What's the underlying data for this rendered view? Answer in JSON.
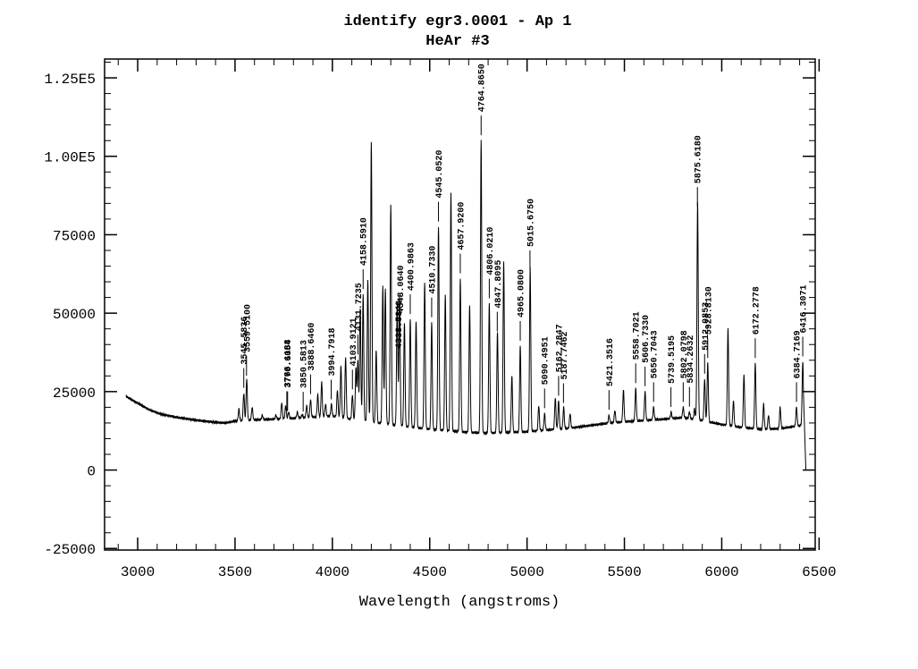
{
  "chart_data": {
    "type": "line",
    "title": "identify egr3.0001 - Ap 1",
    "subtitle": "HeAr #3",
    "xlabel": "Wavelength (angstroms)",
    "ylabel": "",
    "xlim": [
      2830,
      6480
    ],
    "ylim": [
      -25500,
      131000
    ],
    "x_ticks": [
      3000,
      3500,
      4000,
      4500,
      5000,
      5500,
      6000,
      6500
    ],
    "x_tick_labels": [
      "3000",
      "3500",
      "4000",
      "4500",
      "5000",
      "5500",
      "6000",
      "6500"
    ],
    "y_ticks": [
      -25000,
      0,
      25000,
      50000,
      75000,
      100000,
      125000
    ],
    "y_tick_labels": [
      "-25000",
      "0",
      "25000",
      "50000",
      "75000",
      "1.00E5",
      "1.25E5"
    ],
    "grid": false,
    "spectrum": {
      "baseline": [
        [
          2940,
          23500
        ],
        [
          3000,
          21300
        ],
        [
          3060,
          19200
        ],
        [
          3120,
          17800
        ],
        [
          3200,
          16800
        ],
        [
          3300,
          15900
        ],
        [
          3400,
          15200
        ],
        [
          3450,
          15000
        ],
        [
          3500,
          15600
        ],
        [
          3600,
          16000
        ],
        [
          3700,
          16200
        ],
        [
          3800,
          16500
        ],
        [
          3900,
          16900
        ],
        [
          4000,
          17200
        ],
        [
          4100,
          16200
        ],
        [
          4200,
          15300
        ],
        [
          4300,
          14500
        ],
        [
          4400,
          13700
        ],
        [
          4500,
          13000
        ],
        [
          4600,
          12500
        ],
        [
          4700,
          12000
        ],
        [
          4800,
          11800
        ],
        [
          4900,
          12000
        ],
        [
          5000,
          12200
        ],
        [
          5100,
          12800
        ],
        [
          5200,
          13200
        ],
        [
          5300,
          14000
        ],
        [
          5400,
          14800
        ],
        [
          5500,
          15400
        ],
        [
          5600,
          15800
        ],
        [
          5700,
          16200
        ],
        [
          5800,
          16700
        ],
        [
          5900,
          15800
        ],
        [
          6000,
          14500
        ],
        [
          6100,
          13600
        ],
        [
          6200,
          13000
        ],
        [
          6300,
          13200
        ],
        [
          6380,
          14000
        ],
        [
          6420,
          14300
        ],
        [
          6432,
          0
        ]
      ],
      "peaks": [
        [
          3087,
          17100
        ],
        [
          3520,
          19500
        ],
        [
          3545,
          24500
        ],
        [
          3560,
          29000
        ],
        [
          3588,
          20000
        ],
        [
          3640,
          17500
        ],
        [
          3710,
          17500
        ],
        [
          3740,
          21500
        ],
        [
          3760,
          20500
        ],
        [
          3775,
          18500
        ],
        [
          3820,
          18500
        ],
        [
          3845,
          17500
        ],
        [
          3868,
          20500
        ],
        [
          3888,
          22500
        ],
        [
          3925,
          24000
        ],
        [
          3945,
          28000
        ],
        [
          3965,
          21000
        ],
        [
          3995,
          21000
        ],
        [
          4026,
          25500
        ],
        [
          4044,
          33000
        ],
        [
          4068,
          36000
        ],
        [
          4103,
          24000
        ],
        [
          4121,
          32500
        ],
        [
          4131,
          35000
        ],
        [
          4143,
          51500
        ],
        [
          4158,
          56000
        ],
        [
          4182,
          60500
        ],
        [
          4200,
          104800
        ],
        [
          4225,
          38000
        ],
        [
          4259,
          58500
        ],
        [
          4272,
          58000
        ],
        [
          4300,
          84500
        ],
        [
          4333,
          53500
        ],
        [
          4345,
          55500
        ],
        [
          4370,
          47000
        ],
        [
          4400,
          48000
        ],
        [
          4430,
          47500
        ],
        [
          4474,
          60000
        ],
        [
          4510,
          47000
        ],
        [
          4545,
          77500
        ],
        [
          4580,
          56000
        ],
        [
          4609,
          88000
        ],
        [
          4657,
          61000
        ],
        [
          4705,
          52500
        ],
        [
          4764,
          105000
        ],
        [
          4806,
          53000
        ],
        [
          4848,
          44000
        ],
        [
          4880,
          66500
        ],
        [
          4922,
          30000
        ],
        [
          4965,
          39500
        ],
        [
          5016,
          64500
        ],
        [
          5060,
          20500
        ],
        [
          5090,
          18000
        ],
        [
          5145,
          23000
        ],
        [
          5162,
          22000
        ],
        [
          5188,
          20000
        ],
        [
          5221,
          18000
        ],
        [
          5421,
          17500
        ],
        [
          5451,
          19000
        ],
        [
          5495,
          25500
        ],
        [
          5558,
          26000
        ],
        [
          5606,
          25000
        ],
        [
          5650,
          20000
        ],
        [
          5740,
          18500
        ],
        [
          5802,
          20000
        ],
        [
          5834,
          18500
        ],
        [
          5860,
          19500
        ],
        [
          5876,
          85500
        ],
        [
          5912,
          29000
        ],
        [
          5928,
          34000
        ],
        [
          6032,
          45000
        ],
        [
          6060,
          22000
        ],
        [
          6114,
          30500
        ],
        [
          6172,
          34000
        ],
        [
          6215,
          21000
        ],
        [
          6240,
          17500
        ],
        [
          6300,
          20000
        ],
        [
          6384,
          20000
        ],
        [
          6416,
          34500
        ]
      ]
    },
    "line_ids": [
      {
        "x": 3545,
        "label": "3545.5836"
      },
      {
        "x": 3559,
        "label": "3559.5100"
      },
      {
        "x": 3766,
        "label": "3766.1188"
      },
      {
        "x": 3770,
        "label": "3770.6054"
      },
      {
        "x": 3850,
        "label": "3850.5813"
      },
      {
        "x": 3888,
        "label": "3888.6460"
      },
      {
        "x": 3994,
        "label": "3994.7918"
      },
      {
        "x": 4103,
        "label": "4103.9121"
      },
      {
        "x": 4131,
        "label": "4131.7235"
      },
      {
        "x": 4158,
        "label": "4158.5910"
      },
      {
        "x": 4338,
        "label": "4338.5840"
      },
      {
        "x": 4348,
        "label": "4348.0640"
      },
      {
        "x": 4400,
        "label": "4400.9863"
      },
      {
        "x": 4510,
        "label": "4510.7330"
      },
      {
        "x": 4545,
        "label": "4545.0520"
      },
      {
        "x": 4657,
        "label": "4657.9200"
      },
      {
        "x": 4764,
        "label": "4764.8650"
      },
      {
        "x": 4806,
        "label": "4806.0210"
      },
      {
        "x": 4847,
        "label": "4847.8095"
      },
      {
        "x": 4965,
        "label": "4965.0800"
      },
      {
        "x": 5015,
        "label": "5015.6750"
      },
      {
        "x": 5090,
        "label": "5090.4951"
      },
      {
        "x": 5162,
        "label": "5162.2847"
      },
      {
        "x": 5187,
        "label": "5187.7462"
      },
      {
        "x": 5421,
        "label": "5421.3516"
      },
      {
        "x": 5558,
        "label": "5558.7021"
      },
      {
        "x": 5606,
        "label": "5606.7330"
      },
      {
        "x": 5650,
        "label": "5650.7043"
      },
      {
        "x": 5739,
        "label": "5739.5195"
      },
      {
        "x": 5802,
        "label": "5802.0798"
      },
      {
        "x": 5834,
        "label": "5834.2632"
      },
      {
        "x": 5875,
        "label": "5875.6180"
      },
      {
        "x": 5912,
        "label": "5912.0853"
      },
      {
        "x": 5928,
        "label": "5928.8130"
      },
      {
        "x": 6172,
        "label": "6172.2778"
      },
      {
        "x": 6384,
        "label": "6384.7169"
      },
      {
        "x": 6416,
        "label": "6416.3071"
      }
    ]
  }
}
